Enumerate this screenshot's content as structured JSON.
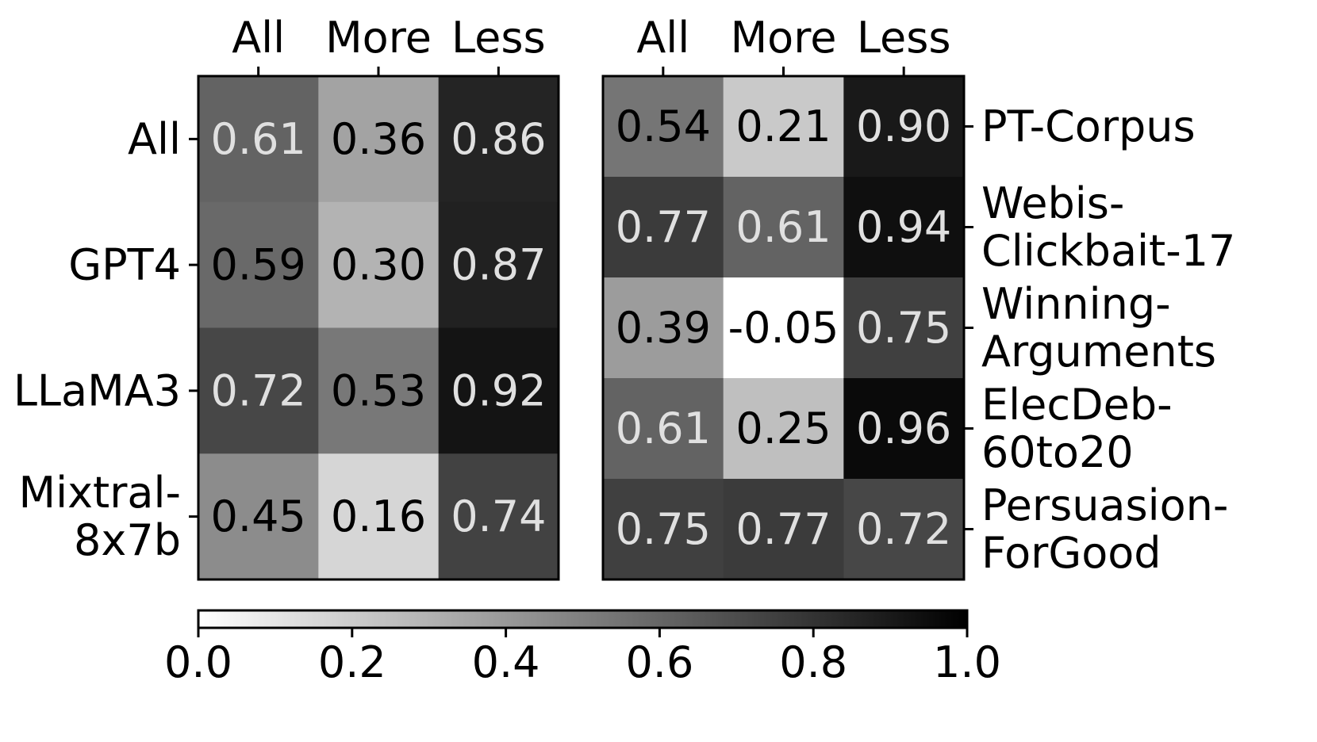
{
  "chart_data": [
    {
      "type": "heatmap",
      "x_tick_position": "top",
      "y_tick_position": "left",
      "columns": [
        "All",
        "More",
        "Less"
      ],
      "rows": [
        "All",
        "GPT4",
        "LLaMA3",
        "Mixtral-\n8x7b"
      ],
      "values": [
        [
          0.61,
          0.36,
          0.86
        ],
        [
          0.59,
          0.3,
          0.87
        ],
        [
          0.72,
          0.53,
          0.92
        ],
        [
          0.45,
          0.16,
          0.74
        ]
      ],
      "value_labels": [
        [
          "0.61",
          "0.36",
          "0.86"
        ],
        [
          "0.59",
          "0.30",
          "0.87"
        ],
        [
          "0.72",
          "0.53",
          "0.92"
        ],
        [
          "0.45",
          "0.16",
          "0.74"
        ]
      ]
    },
    {
      "type": "heatmap",
      "x_tick_position": "top",
      "y_tick_position": "right",
      "columns": [
        "All",
        "More",
        "Less"
      ],
      "rows": [
        "PT-Corpus",
        "Webis-\nClickbait-17",
        "Winning-\nArguments",
        "ElecDeb-\n60to20",
        "Persuasion-\nForGood"
      ],
      "values": [
        [
          0.54,
          0.21,
          0.9
        ],
        [
          0.77,
          0.61,
          0.94
        ],
        [
          0.39,
          -0.05,
          0.75
        ],
        [
          0.61,
          0.25,
          0.96
        ],
        [
          0.75,
          0.77,
          0.72
        ]
      ],
      "value_labels": [
        [
          "0.54",
          "0.21",
          "0.90"
        ],
        [
          "0.77",
          "0.61",
          "0.94"
        ],
        [
          "0.39",
          "-0.05",
          "0.75"
        ],
        [
          "0.61",
          "0.25",
          "0.96"
        ],
        [
          "0.75",
          "0.77",
          "0.72"
        ]
      ]
    }
  ],
  "colorbar": {
    "colormap": "Greys",
    "low_color": "#ffffff",
    "high_color": "#000000",
    "vmin": 0.0,
    "vmax": 1.0,
    "ticks": [
      0.0,
      0.2,
      0.4,
      0.6,
      0.8,
      1.0
    ],
    "tick_labels": [
      "0.0",
      "0.2",
      "0.4",
      "0.6",
      "0.8",
      "1.0"
    ],
    "orientation": "horizontal"
  },
  "text_colors": {
    "dark": "#000000",
    "light": "#e0e0e0"
  }
}
